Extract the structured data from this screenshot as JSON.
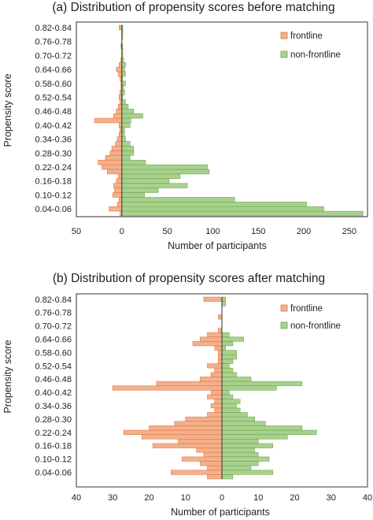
{
  "colors": {
    "frontline_fill": "#f4b08a",
    "frontline_stroke": "#e07a4a",
    "nonfrontline_fill": "#a9d18e",
    "nonfrontline_stroke": "#6ea84e",
    "frame": "#333333"
  },
  "chart_data": [
    {
      "type": "bar",
      "orientation": "horizontal-back-to-back",
      "title": "(a) Distribution of propensity scores before matching",
      "xlabel": "Number of participants",
      "ylabel": "Propensity score",
      "xlim": [
        -50,
        270
      ],
      "xticks": [
        {
          "v": -50,
          "label": "50"
        },
        {
          "v": 0,
          "label": "0"
        },
        {
          "v": 50,
          "label": "50"
        },
        {
          "v": 100,
          "label": "100"
        },
        {
          "v": 150,
          "label": "150"
        },
        {
          "v": 200,
          "label": "200"
        },
        {
          "v": 250,
          "label": "250"
        }
      ],
      "categories": [
        "0.02-0.04",
        "0.04-0.06",
        "0.06-0.08",
        "0.08-0.10",
        "0.10-0.12",
        "0.12-0.14",
        "0.14-0.16",
        "0.16-0.18",
        "0.18-0.20",
        "0.20-0.22",
        "0.22-0.24",
        "0.24-0.26",
        "0.26-0.28",
        "0.28-0.30",
        "0.30-0.32",
        "0.32-0.34",
        "0.34-0.36",
        "0.36-0.38",
        "0.38-0.40",
        "0.40-0.42",
        "0.42-0.44",
        "0.44-0.46",
        "0.46-0.48",
        "0.48-0.50",
        "0.50-0.52",
        "0.52-0.54",
        "0.54-0.56",
        "0.56-0.58",
        "0.58-0.60",
        "0.60-0.62",
        "0.62-0.64",
        "0.64-0.66",
        "0.66-0.68",
        "0.68-0.70",
        "0.70-0.72",
        "0.72-0.74",
        "0.74-0.76",
        "0.76-0.78",
        "0.78-0.80",
        "0.80-0.82",
        "0.82-0.84"
      ],
      "yticklabels": [
        "0.04-0.06",
        "0.10-0.12",
        "0.16-0.18",
        "0.22-0.24",
        "0.28-0.30",
        "0.34-0.36",
        "0.40-0.42",
        "0.46-0.48",
        "0.52-0.54",
        "0.58-0.60",
        "0.64-0.66",
        "0.70-0.72",
        "0.76-0.78",
        "0.82-0.84"
      ],
      "series": [
        {
          "name": "frontline",
          "values": [
            2,
            14,
            5,
            3,
            10,
            8,
            9,
            6,
            4,
            16,
            22,
            26,
            18,
            13,
            11,
            7,
            5,
            3,
            2,
            3,
            30,
            9,
            6,
            4,
            2,
            3,
            2,
            1,
            1,
            2,
            4,
            6,
            3,
            1,
            0,
            0,
            1,
            0,
            0,
            0,
            3
          ]
        },
        {
          "name": "non-frontline",
          "values": [
            265,
            222,
            203,
            124,
            25,
            40,
            72,
            52,
            64,
            96,
            94,
            26,
            9,
            13,
            13,
            9,
            4,
            3,
            3,
            9,
            10,
            23,
            13,
            7,
            4,
            1,
            3,
            2,
            4,
            1,
            4,
            3,
            4,
            2,
            1,
            1,
            1,
            0,
            1,
            1,
            1
          ]
        }
      ],
      "legend": "top-right"
    },
    {
      "type": "bar",
      "orientation": "horizontal-back-to-back",
      "title": "(b) Distribution of propensity scores after matching",
      "xlabel": "Number of participants",
      "ylabel": "Propensity score",
      "xlim": [
        -40,
        40
      ],
      "xticks": [
        {
          "v": -40,
          "label": "40"
        },
        {
          "v": -30,
          "label": "30"
        },
        {
          "v": -20,
          "label": "20"
        },
        {
          "v": -10,
          "label": "10"
        },
        {
          "v": 0,
          "label": "0"
        },
        {
          "v": 10,
          "label": "10"
        },
        {
          "v": 20,
          "label": "20"
        },
        {
          "v": 30,
          "label": "30"
        },
        {
          "v": 40,
          "label": "40"
        }
      ],
      "categories": [
        "0.02-0.04",
        "0.04-0.06",
        "0.06-0.08",
        "0.08-0.10",
        "0.10-0.12",
        "0.12-0.14",
        "0.14-0.16",
        "0.16-0.18",
        "0.18-0.20",
        "0.20-0.22",
        "0.22-0.24",
        "0.24-0.26",
        "0.26-0.28",
        "0.28-0.30",
        "0.30-0.32",
        "0.32-0.34",
        "0.34-0.36",
        "0.36-0.38",
        "0.38-0.40",
        "0.40-0.42",
        "0.42-0.44",
        "0.44-0.46",
        "0.46-0.48",
        "0.48-0.50",
        "0.50-0.52",
        "0.52-0.54",
        "0.54-0.56",
        "0.56-0.58",
        "0.58-0.60",
        "0.60-0.62",
        "0.62-0.64",
        "0.64-0.66",
        "0.66-0.68",
        "0.68-0.70",
        "0.70-0.72",
        "0.72-0.74",
        "0.74-0.76",
        "0.76-0.78",
        "0.78-0.80",
        "0.80-0.82",
        "0.82-0.84"
      ],
      "yticklabels": [
        "0.04-0.06",
        "0.10-0.12",
        "0.16-0.18",
        "0.22-0.24",
        "0.28-0.30",
        "0.34-0.36",
        "0.40-0.42",
        "0.46-0.48",
        "0.52-0.54",
        "0.58-0.60",
        "0.64-0.66",
        "0.70-0.72",
        "0.76-0.78",
        "0.82-0.84"
      ],
      "series": [
        {
          "name": "frontline",
          "values": [
            4,
            14,
            4,
            6,
            11,
            5,
            7,
            19,
            12,
            22,
            27,
            20,
            13,
            10,
            4,
            2,
            3,
            2,
            4,
            3,
            30,
            18,
            6,
            3,
            2,
            4,
            1,
            1,
            1,
            2,
            8,
            6,
            4,
            1,
            0,
            0,
            1,
            0,
            0,
            0,
            5
          ]
        },
        {
          "name": "non-frontline",
          "values": [
            3,
            14,
            8,
            10,
            13,
            10,
            9,
            14,
            10,
            18,
            26,
            22,
            12,
            9,
            7,
            5,
            4,
            5,
            3,
            2,
            15,
            22,
            8,
            4,
            3,
            2,
            3,
            4,
            4,
            1,
            3,
            6,
            2,
            0,
            0,
            0,
            0,
            0,
            0,
            1,
            1
          ]
        }
      ],
      "legend": "top-right"
    }
  ]
}
